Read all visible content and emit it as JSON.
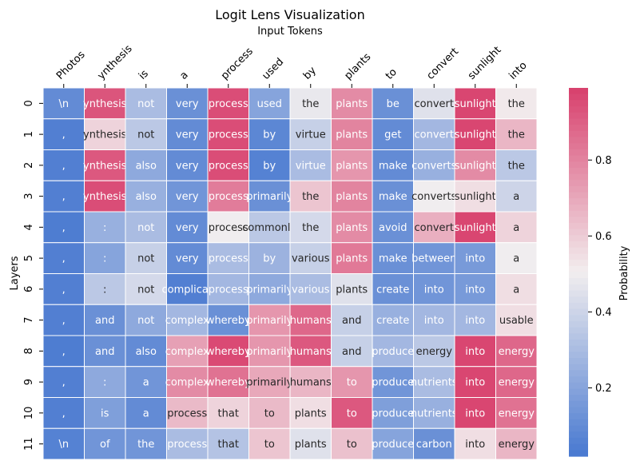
{
  "chart_data": {
    "type": "heatmap",
    "title": "Logit Lens Visualization",
    "xlabel": "Input Tokens",
    "ylabel": "Layers",
    "colorbar_label": "Probability",
    "x_tokens": [
      "Photos",
      "ynthesis",
      "is",
      "a",
      "process",
      "used",
      "by",
      "plants",
      "to",
      "convert",
      "sunlight",
      "into"
    ],
    "y_layers": [
      "0",
      "1",
      "2",
      "3",
      "4",
      "5",
      "6",
      "7",
      "8",
      "9",
      "10",
      "11"
    ],
    "colorbar_ticks": [
      "0.2",
      "0.4",
      "0.6",
      "0.8"
    ],
    "colorbar_tick_values": [
      0.2,
      0.4,
      0.6,
      0.8
    ],
    "value_range": [
      0.02,
      0.99
    ],
    "colormap": {
      "low": "#4778d0",
      "mid": "#f2eeef",
      "high": "#d83f6c"
    },
    "cell_labels": [
      [
        "\\n",
        "ynthesis",
        "not",
        "very",
        "process",
        "used",
        "the",
        "plants",
        "be",
        "convert",
        "sunlight",
        "the"
      ],
      [
        ",",
        "ynthesis",
        "not",
        "very",
        "process",
        "by",
        "virtue",
        "plants",
        "get",
        "convert",
        "sunlight",
        "the"
      ],
      [
        ",",
        "ynthesis",
        "also",
        "very",
        "process",
        "by",
        "virtue",
        "plants",
        "make",
        "converts",
        "sunlight",
        "the"
      ],
      [
        ",",
        "ynthesis",
        "also",
        "very",
        "process",
        "primarily",
        "the",
        "plants",
        "make",
        "converts",
        "sunlight",
        "a"
      ],
      [
        ",",
        ":",
        "not",
        "very",
        "process",
        "commonly",
        "the",
        "plants",
        "avoid",
        "convert",
        "sunlight",
        "a"
      ],
      [
        ",",
        ":",
        "not",
        "very",
        "process",
        "by",
        "various",
        "plants",
        "make",
        "between",
        "into",
        "a"
      ],
      [
        ",",
        ":",
        "not",
        "complicat",
        "process",
        "primarily",
        "various",
        "plants",
        "create",
        "into",
        "into",
        "a"
      ],
      [
        ",",
        "and",
        "not",
        "complex",
        "whereby",
        "primarily",
        "humans",
        "and",
        "create",
        "into",
        "into",
        "usable"
      ],
      [
        ",",
        "and",
        "also",
        "complex",
        "whereby",
        "primarily",
        "humans",
        "and",
        "produce",
        "energy",
        "into",
        "energy"
      ],
      [
        ",",
        ":",
        "a",
        "complex",
        "whereby",
        "primarily",
        "humans",
        "to",
        "produce",
        "nutrients",
        "into",
        "energy"
      ],
      [
        ",",
        "is",
        "a",
        "process",
        "that",
        "to",
        "plants",
        "to",
        "produce",
        "nutrients",
        "into",
        "energy"
      ],
      [
        "\\n",
        "of",
        "the",
        "process",
        "that",
        "to",
        "plants",
        "to",
        "produce",
        "carbon",
        "into",
        "energy"
      ]
    ],
    "values": [
      [
        0.1,
        0.93,
        0.3,
        0.12,
        0.95,
        0.2,
        0.48,
        0.78,
        0.12,
        0.45,
        0.97,
        0.52
      ],
      [
        0.05,
        0.58,
        0.35,
        0.1,
        0.95,
        0.08,
        0.38,
        0.8,
        0.1,
        0.28,
        0.97,
        0.66
      ],
      [
        0.05,
        0.92,
        0.22,
        0.1,
        0.95,
        0.06,
        0.3,
        0.75,
        0.1,
        0.25,
        0.78,
        0.35
      ],
      [
        0.05,
        0.95,
        0.25,
        0.14,
        0.82,
        0.12,
        0.62,
        0.8,
        0.12,
        0.5,
        0.55,
        0.4
      ],
      [
        0.04,
        0.25,
        0.3,
        0.1,
        0.5,
        0.35,
        0.42,
        0.78,
        0.12,
        0.68,
        0.97,
        0.58
      ],
      [
        0.05,
        0.2,
        0.38,
        0.1,
        0.3,
        0.26,
        0.38,
        0.83,
        0.12,
        0.14,
        0.16,
        0.5
      ],
      [
        0.05,
        0.35,
        0.42,
        0.05,
        0.28,
        0.22,
        0.3,
        0.45,
        0.12,
        0.14,
        0.16,
        0.55
      ],
      [
        0.05,
        0.12,
        0.22,
        0.28,
        0.12,
        0.75,
        0.88,
        0.38,
        0.25,
        0.28,
        0.28,
        0.55
      ],
      [
        0.04,
        0.12,
        0.1,
        0.72,
        0.96,
        0.75,
        0.92,
        0.38,
        0.28,
        0.35,
        0.97,
        0.88
      ],
      [
        0.05,
        0.22,
        0.14,
        0.78,
        0.85,
        0.7,
        0.66,
        0.75,
        0.14,
        0.3,
        0.97,
        0.88
      ],
      [
        0.05,
        0.18,
        0.1,
        0.65,
        0.58,
        0.65,
        0.55,
        0.92,
        0.18,
        0.25,
        0.97,
        0.85
      ],
      [
        0.06,
        0.14,
        0.14,
        0.3,
        0.33,
        0.62,
        0.45,
        0.63,
        0.2,
        0.12,
        0.55,
        0.66
      ]
    ]
  }
}
